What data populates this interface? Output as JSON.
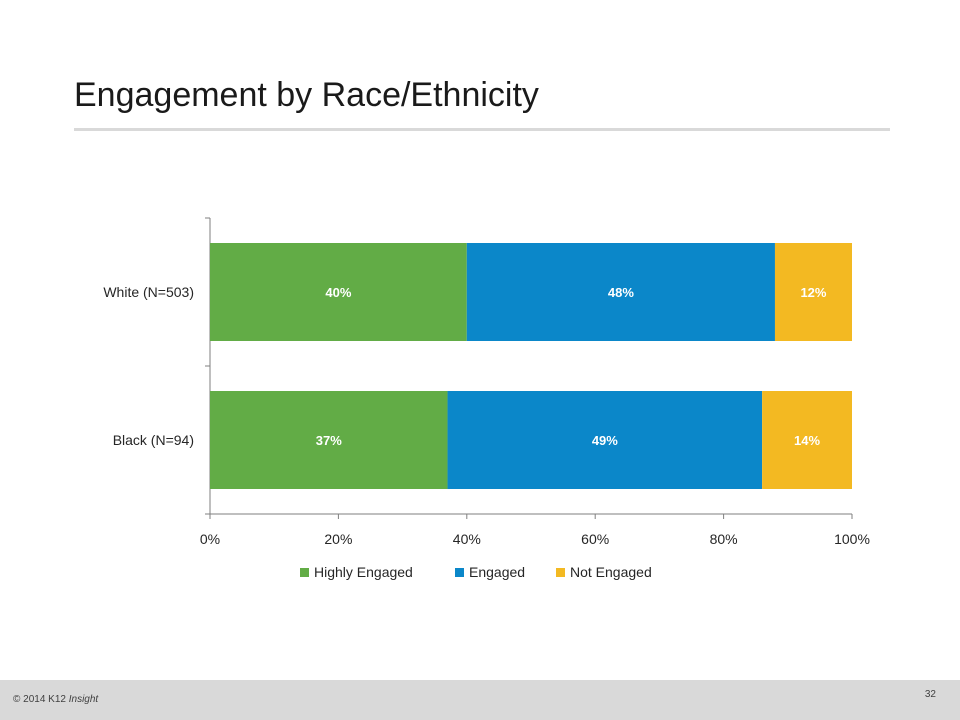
{
  "slide": {
    "title": "Engagement by Race/Ethnicity"
  },
  "footer": {
    "copyright_prefix": "© 2014 K12",
    "copyright_brand": "Insight",
    "page_number": "32"
  },
  "chart_data": {
    "type": "bar",
    "orientation": "horizontal",
    "stacked": true,
    "categories": [
      "White (N=503)",
      "Black (N=94)"
    ],
    "series": [
      {
        "name": "Highly Engaged",
        "values": [
          40,
          37
        ],
        "labels": [
          "40%",
          "37%"
        ],
        "color": "#62ac46"
      },
      {
        "name": "Engaged",
        "values": [
          48,
          49
        ],
        "labels": [
          "48%",
          "49%"
        ],
        "color": "#0b87c9"
      },
      {
        "name": "Not Engaged",
        "values": [
          12,
          14
        ],
        "labels": [
          "12%",
          "14%"
        ],
        "color": "#f3b922"
      }
    ],
    "xlim": [
      0,
      100
    ],
    "xticks": [
      "0%",
      "20%",
      "40%",
      "60%",
      "80%",
      "100%"
    ],
    "grid": false,
    "legend": "bottom"
  }
}
